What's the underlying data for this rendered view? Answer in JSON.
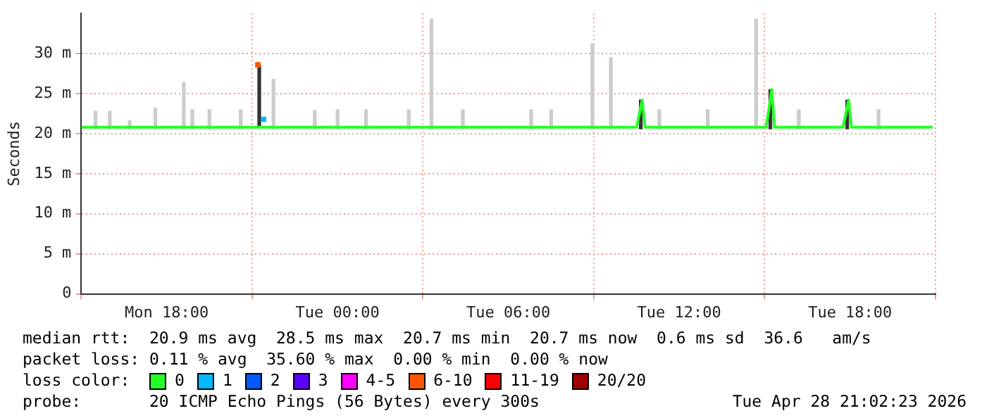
{
  "chart_data": {
    "type": "line",
    "ylabel": "Seconds",
    "xlim": [
      "2026-04-27T15:00",
      "2026-04-28T21:00"
    ],
    "xticks": [
      {
        "value": "2026-04-27T18:00",
        "label": "Mon 18:00"
      },
      {
        "value": "2026-04-28T00:00",
        "label": "Tue 00:00"
      },
      {
        "value": "2026-04-28T06:00",
        "label": "Tue 06:00"
      },
      {
        "value": "2026-04-28T12:00",
        "label": "Tue 12:00"
      },
      {
        "value": "2026-04-28T18:00",
        "label": "Tue 18:00"
      }
    ],
    "ylim": [
      0,
      35
    ],
    "yticks": [
      0,
      {
        "value": 5,
        "label": "5 m"
      },
      {
        "value": 10,
        "label": "10 m"
      },
      {
        "value": 15,
        "label": "15 m"
      },
      {
        "value": 20,
        "label": "20 m"
      },
      {
        "value": 25,
        "label": "25 m"
      },
      {
        "value": 30,
        "label": "30 m"
      }
    ],
    "grid": true,
    "legend": "bottom",
    "legend_title": "loss color:",
    "series": [
      {
        "type": "bar",
        "color": "#cccccc",
        "x": [
          "2026-04-27T15:30",
          "2026-04-27T16:00",
          "2026-04-27T16:42",
          "2026-04-27T17:36",
          "2026-04-27T18:36",
          "2026-04-27T18:54",
          "2026-04-27T19:30",
          "2026-04-27T20:36",
          "2026-04-27T21:45",
          "2026-04-27T23:12",
          "2026-04-28T00:00",
          "2026-04-28T01:00",
          "2026-04-28T02:30",
          "2026-04-28T03:18",
          "2026-04-28T04:24",
          "2026-04-28T06:48",
          "2026-04-28T07:30",
          "2026-04-28T08:57",
          "2026-04-28T09:36",
          "2026-04-28T11:18",
          "2026-04-28T13:00",
          "2026-04-28T14:42",
          "2026-04-28T16:12",
          "2026-04-28T19:00"
        ],
        "values": [
          2.2,
          2.2,
          1.0,
          2.6,
          5.8,
          2.4,
          2.4,
          2.4,
          6.2,
          2.3,
          2.4,
          2.4,
          2.4,
          13.7,
          2.4,
          2.4,
          2.4,
          10.6,
          8.9,
          2.4,
          2.4,
          13.7,
          2.4,
          2.4
        ],
        "base": [
          20.6,
          20.6,
          20.6,
          20.6,
          20.6,
          20.6,
          20.6,
          20.6,
          20.6,
          20.6,
          20.6,
          20.6,
          20.6,
          20.6,
          20.6,
          20.6,
          20.6,
          20.6,
          20.6,
          20.6,
          20.6,
          20.6,
          20.6,
          20.6
        ]
      },
      {
        "type": "bar",
        "color": "#333333",
        "x": [
          "2026-04-27T21:15",
          "2026-04-28T10:39",
          "2026-04-28T15:12",
          "2026-04-28T17:54"
        ],
        "values": [
          7.7,
          3.6,
          4.9,
          3.6
        ],
        "base": [
          20.8,
          20.6,
          20.6,
          20.6
        ]
      },
      {
        "name": "0",
        "color": "#26ff26",
        "x": [
          "2026-04-27T15:00",
          "2026-04-27T21:06",
          "2026-04-27T21:18",
          "2026-04-27T21:30",
          "2026-04-28T10:30",
          "2026-04-28T10:36",
          "2026-04-28T10:42",
          "2026-04-28T10:48",
          "2026-04-28T15:03",
          "2026-04-28T15:09",
          "2026-04-28T15:15",
          "2026-04-28T15:21",
          "2026-04-28T17:45",
          "2026-04-28T17:51",
          "2026-04-28T17:57",
          "2026-04-28T18:03",
          "2026-04-28T20:54"
        ],
        "values": [
          20.8,
          20.8,
          20.8,
          20.8,
          20.8,
          22.5,
          24.2,
          20.8,
          20.8,
          23.1,
          25.5,
          20.8,
          20.8,
          22.5,
          24.2,
          20.8,
          20.8
        ]
      },
      {
        "name": "1",
        "type": "scatter",
        "color": "#00b8ff",
        "x": [
          "2026-04-27T21:24"
        ],
        "values": [
          21.8
        ]
      },
      {
        "name": "2",
        "type": "scatter",
        "color": "#0059ff"
      },
      {
        "name": "3",
        "type": "scatter",
        "color": "#5e00ff"
      },
      {
        "name": "4-5",
        "type": "scatter",
        "color": "#ff00ff"
      },
      {
        "name": "6-10",
        "type": "scatter",
        "color": "#ff5500",
        "x": [
          "2026-04-27T21:12"
        ],
        "values": [
          28.6
        ]
      },
      {
        "name": "11-19",
        "type": "scatter",
        "color": "#ff0000"
      },
      {
        "name": "20/20",
        "type": "scatter",
        "color": "#a10000"
      }
    ],
    "annotations": [
      "median rtt:  20.9 ms avg  28.5 ms max  20.7 ms min  20.7 ms now  0.6 ms sd  36.6   am/s",
      "packet loss: 0.11 % avg  35.60 % max  0.00 % min  0.00 % now",
      "probe:       20 ICMP Echo Pings (56 Bytes) every 300s",
      "Tue Apr 28 21:02:23 2026"
    ]
  }
}
